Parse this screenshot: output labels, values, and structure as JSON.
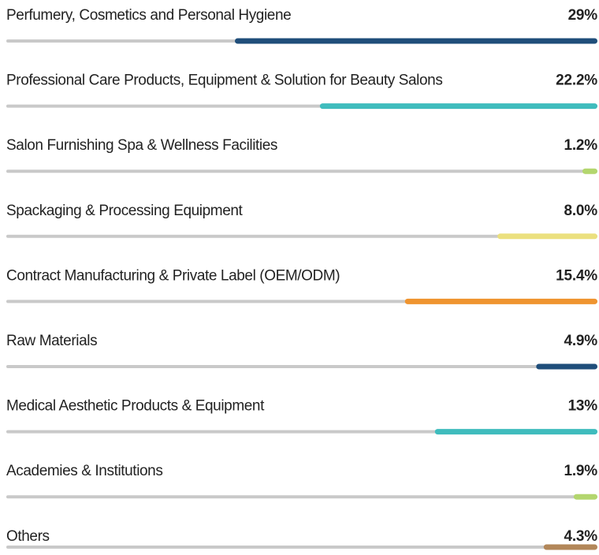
{
  "chart_data": {
    "type": "progress",
    "categories": [
      "Perfumery, Cosmetics and Personal Hygiene",
      "Professional Care Products, Equipment & Solution for Beauty Salons",
      "Salon Furnishing Spa & Wellness Facilities",
      "Spackaging & Processing Equipment",
      "Contract Manufacturing & Private Label (OEM/ODM)",
      "Raw Materials",
      "Medical Aesthetic Products & Equipment",
      "Academies & Institutions",
      "Others"
    ],
    "values": [
      29,
      22.2,
      1.2,
      8.0,
      15.4,
      4.9,
      13,
      1.9,
      4.3
    ],
    "value_labels": [
      "29%",
      "22.2%",
      "1.2%",
      "8.0%",
      "15.4%",
      "4.9%",
      "13%",
      "1.9%",
      "4.3%"
    ],
    "colors": [
      "#1f4e7a",
      "#3fbcbd",
      "#b3d66e",
      "#ebe07e",
      "#ef942f",
      "#1f4e7a",
      "#3fbcbd",
      "#b3d66e",
      "#b28759"
    ]
  }
}
